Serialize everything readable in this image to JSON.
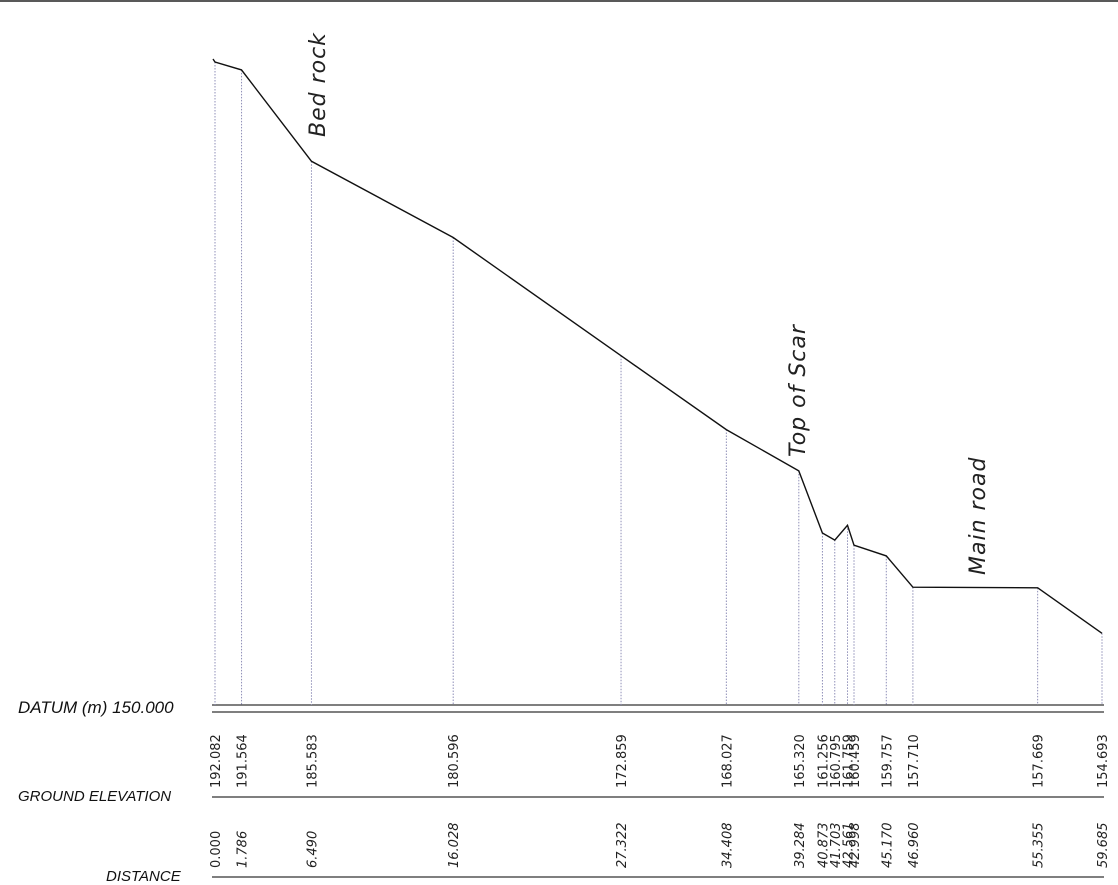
{
  "labels": {
    "datum": "DATUM (m) 150.000",
    "ground_elevation": "GROUND ELEVATION",
    "distance": "DISTANCE"
  },
  "annotations": {
    "bed_rock": "Bed rock",
    "top_of_scar": "Top of Scar",
    "main_road": "Main road"
  },
  "chart_data": {
    "type": "line",
    "datum": 150.0,
    "x_unit": "m",
    "y_unit": "m",
    "stations": [
      {
        "distance": "0.000",
        "elevation": "192.082",
        "d": 0.0,
        "e": 192.082
      },
      {
        "distance": "1.786",
        "elevation": "191.564",
        "d": 1.786,
        "e": 191.564
      },
      {
        "distance": "6.490",
        "elevation": "185.583",
        "d": 6.49,
        "e": 185.583
      },
      {
        "distance": "16.028",
        "elevation": "180.596",
        "d": 16.028,
        "e": 180.596
      },
      {
        "distance": "27.322",
        "elevation": "172.859",
        "d": 27.322,
        "e": 172.859
      },
      {
        "distance": "34.408",
        "elevation": "168.027",
        "d": 34.408,
        "e": 168.027
      },
      {
        "distance": "39.284",
        "elevation": "165.320",
        "d": 39.284,
        "e": 165.32
      },
      {
        "distance": "40.873",
        "elevation": "161.256",
        "d": 40.873,
        "e": 161.256
      },
      {
        "distance": "41.703",
        "elevation": "160.795",
        "d": 41.703,
        "e": 160.795
      },
      {
        "distance": "42.561",
        "elevation": "161.759",
        "d": 42.561,
        "e": 161.759
      },
      {
        "distance": "42.998",
        "elevation": "160.459",
        "d": 42.998,
        "e": 160.459
      },
      {
        "distance": "45.170",
        "elevation": "159.757",
        "d": 45.17,
        "e": 159.757
      },
      {
        "distance": "46.960",
        "elevation": "157.710",
        "d": 46.96,
        "e": 157.71
      },
      {
        "distance": "55.355",
        "elevation": "157.669",
        "d": 55.355,
        "e": 157.669
      },
      {
        "distance": "59.685",
        "elevation": "154.693",
        "d": 59.685,
        "e": 154.693
      }
    ]
  }
}
